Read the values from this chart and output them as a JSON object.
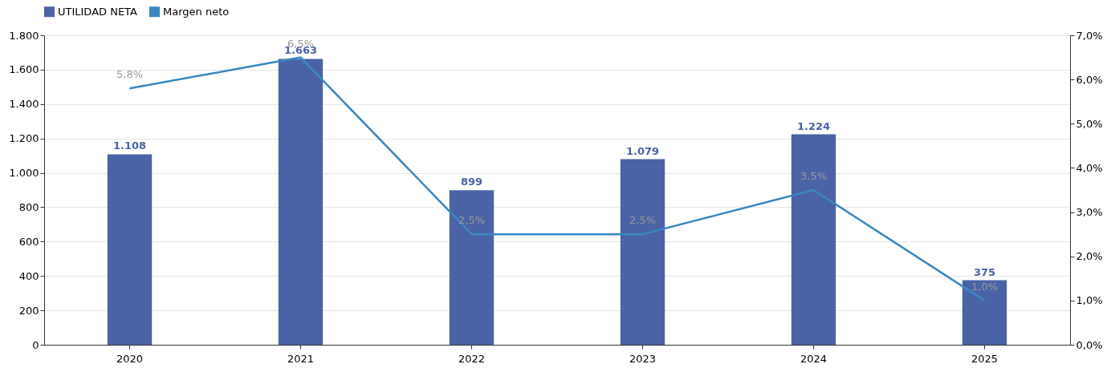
{
  "chart_data": {
    "type": "bar",
    "categories": [
      "2020",
      "2021",
      "2022",
      "2023",
      "2024",
      "2025"
    ],
    "series": [
      {
        "name": "UTILIDAD NETA",
        "color": "#4a63a6",
        "values": [
          1108,
          1663,
          899,
          1079,
          1224,
          375
        ],
        "value_labels": [
          "1.108",
          "1.663",
          "899",
          "1.079",
          "1.224",
          "375"
        ]
      },
      {
        "name": "Margen neto",
        "type": "line",
        "axis": "y2",
        "color": "#3a87c0",
        "values": [
          5.8,
          6.5,
          2.5,
          2.5,
          3.5,
          1.0
        ],
        "value_labels": [
          "5,8%",
          "6,5%",
          "2,5%",
          "2,5%",
          "3,5%",
          "1,0%"
        ]
      }
    ],
    "ylim": [
      0,
      1800
    ],
    "yticks": [
      0,
      200,
      400,
      600,
      800,
      {
        "value": 1000,
        "label": "1.000"
      },
      {
        "value": 1200,
        "label": "1.200"
      },
      {
        "value": 1400,
        "label": "1.400"
      },
      {
        "value": 1600,
        "label": "1.600"
      },
      {
        "value": 1800,
        "label": "1.800"
      }
    ],
    "y2lim": [
      0,
      7
    ],
    "y2ticks": [
      {
        "value": 0,
        "label": "0,0%"
      },
      {
        "value": 1,
        "label": "1,0%"
      },
      {
        "value": 2,
        "label": "2,0%"
      },
      {
        "value": 3,
        "label": "3,0%"
      },
      {
        "value": 4,
        "label": "4,0%"
      },
      {
        "value": 5,
        "label": "5,0%"
      },
      {
        "value": 6,
        "label": "6,0%"
      },
      {
        "value": 7,
        "label": "7,0%"
      }
    ],
    "grid": "y",
    "legend": "top",
    "marker": "none",
    "line_style": "solid"
  }
}
